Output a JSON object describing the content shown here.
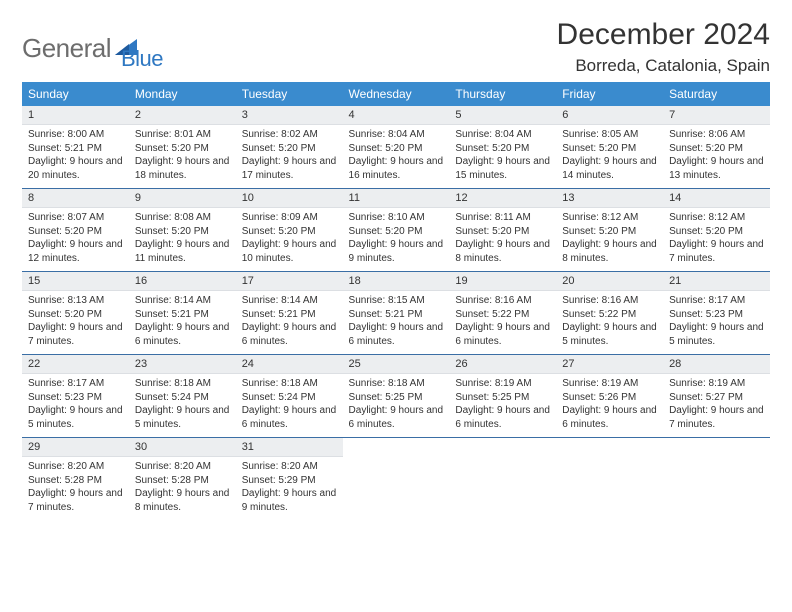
{
  "logo": {
    "text1": "General",
    "text2": "Blue"
  },
  "title": "December 2024",
  "subtitle": "Borreda, Catalonia, Spain",
  "colors": {
    "header_bg": "#3a8bce",
    "header_text": "#ffffff",
    "daynum_bg": "#eceef0",
    "row_border": "#3a6ea5",
    "body_text": "#333333",
    "logo_gray": "#6d6d6d",
    "logo_blue": "#2f78c2",
    "page_bg": "#ffffff"
  },
  "typography": {
    "title_fontsize": 30,
    "subtitle_fontsize": 17,
    "header_fontsize": 12,
    "daynum_fontsize": 11,
    "body_fontsize": 10
  },
  "weekdays": [
    "Sunday",
    "Monday",
    "Tuesday",
    "Wednesday",
    "Thursday",
    "Friday",
    "Saturday"
  ],
  "weeks": [
    [
      {
        "n": "1",
        "sr": "8:00 AM",
        "ss": "5:21 PM",
        "dl": "9 hours and 20 minutes."
      },
      {
        "n": "2",
        "sr": "8:01 AM",
        "ss": "5:20 PM",
        "dl": "9 hours and 18 minutes."
      },
      {
        "n": "3",
        "sr": "8:02 AM",
        "ss": "5:20 PM",
        "dl": "9 hours and 17 minutes."
      },
      {
        "n": "4",
        "sr": "8:04 AM",
        "ss": "5:20 PM",
        "dl": "9 hours and 16 minutes."
      },
      {
        "n": "5",
        "sr": "8:04 AM",
        "ss": "5:20 PM",
        "dl": "9 hours and 15 minutes."
      },
      {
        "n": "6",
        "sr": "8:05 AM",
        "ss": "5:20 PM",
        "dl": "9 hours and 14 minutes."
      },
      {
        "n": "7",
        "sr": "8:06 AM",
        "ss": "5:20 PM",
        "dl": "9 hours and 13 minutes."
      }
    ],
    [
      {
        "n": "8",
        "sr": "8:07 AM",
        "ss": "5:20 PM",
        "dl": "9 hours and 12 minutes."
      },
      {
        "n": "9",
        "sr": "8:08 AM",
        "ss": "5:20 PM",
        "dl": "9 hours and 11 minutes."
      },
      {
        "n": "10",
        "sr": "8:09 AM",
        "ss": "5:20 PM",
        "dl": "9 hours and 10 minutes."
      },
      {
        "n": "11",
        "sr": "8:10 AM",
        "ss": "5:20 PM",
        "dl": "9 hours and 9 minutes."
      },
      {
        "n": "12",
        "sr": "8:11 AM",
        "ss": "5:20 PM",
        "dl": "9 hours and 8 minutes."
      },
      {
        "n": "13",
        "sr": "8:12 AM",
        "ss": "5:20 PM",
        "dl": "9 hours and 8 minutes."
      },
      {
        "n": "14",
        "sr": "8:12 AM",
        "ss": "5:20 PM",
        "dl": "9 hours and 7 minutes."
      }
    ],
    [
      {
        "n": "15",
        "sr": "8:13 AM",
        "ss": "5:20 PM",
        "dl": "9 hours and 7 minutes."
      },
      {
        "n": "16",
        "sr": "8:14 AM",
        "ss": "5:21 PM",
        "dl": "9 hours and 6 minutes."
      },
      {
        "n": "17",
        "sr": "8:14 AM",
        "ss": "5:21 PM",
        "dl": "9 hours and 6 minutes."
      },
      {
        "n": "18",
        "sr": "8:15 AM",
        "ss": "5:21 PM",
        "dl": "9 hours and 6 minutes."
      },
      {
        "n": "19",
        "sr": "8:16 AM",
        "ss": "5:22 PM",
        "dl": "9 hours and 6 minutes."
      },
      {
        "n": "20",
        "sr": "8:16 AM",
        "ss": "5:22 PM",
        "dl": "9 hours and 5 minutes."
      },
      {
        "n": "21",
        "sr": "8:17 AM",
        "ss": "5:23 PM",
        "dl": "9 hours and 5 minutes."
      }
    ],
    [
      {
        "n": "22",
        "sr": "8:17 AM",
        "ss": "5:23 PM",
        "dl": "9 hours and 5 minutes."
      },
      {
        "n": "23",
        "sr": "8:18 AM",
        "ss": "5:24 PM",
        "dl": "9 hours and 5 minutes."
      },
      {
        "n": "24",
        "sr": "8:18 AM",
        "ss": "5:24 PM",
        "dl": "9 hours and 6 minutes."
      },
      {
        "n": "25",
        "sr": "8:18 AM",
        "ss": "5:25 PM",
        "dl": "9 hours and 6 minutes."
      },
      {
        "n": "26",
        "sr": "8:19 AM",
        "ss": "5:25 PM",
        "dl": "9 hours and 6 minutes."
      },
      {
        "n": "27",
        "sr": "8:19 AM",
        "ss": "5:26 PM",
        "dl": "9 hours and 6 minutes."
      },
      {
        "n": "28",
        "sr": "8:19 AM",
        "ss": "5:27 PM",
        "dl": "9 hours and 7 minutes."
      }
    ],
    [
      {
        "n": "29",
        "sr": "8:20 AM",
        "ss": "5:28 PM",
        "dl": "9 hours and 7 minutes."
      },
      {
        "n": "30",
        "sr": "8:20 AM",
        "ss": "5:28 PM",
        "dl": "9 hours and 8 minutes."
      },
      {
        "n": "31",
        "sr": "8:20 AM",
        "ss": "5:29 PM",
        "dl": "9 hours and 9 minutes."
      },
      null,
      null,
      null,
      null
    ]
  ],
  "labels": {
    "sunrise": "Sunrise:",
    "sunset": "Sunset:",
    "daylight": "Daylight:"
  }
}
